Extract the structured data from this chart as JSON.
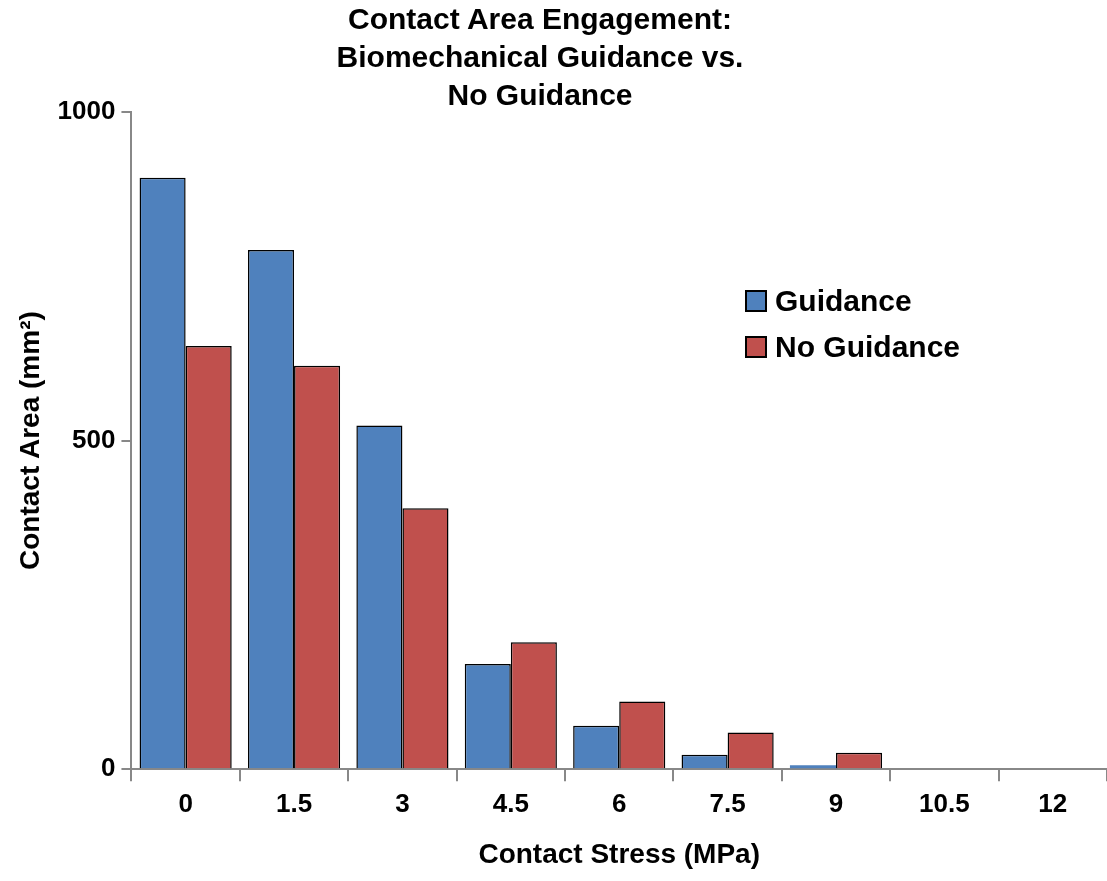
{
  "chart_data": {
    "type": "bar",
    "title": "Contact Area Engagement: Biomechanical Guidance vs. No Guidance",
    "xlabel": "Contact Stress (MPa)",
    "ylabel": "Contact Area (mm²)",
    "categories": [
      "0",
      "1.5",
      "3",
      "4.5",
      "6",
      "7.5",
      "9",
      "10.5",
      "12"
    ],
    "series": [
      {
        "name": "Guidance",
        "color": "#4f81bd",
        "values": [
          900,
          790,
          523,
          160,
          66,
          22,
          6,
          0,
          0
        ]
      },
      {
        "name": "No Guidance",
        "color": "#c0504d",
        "values": [
          644,
          614,
          397,
          193,
          103,
          56,
          25,
          null,
          0
        ]
      }
    ],
    "ylim": [
      0,
      1000
    ],
    "yticks": [
      0,
      500,
      1000
    ],
    "grid": false,
    "legend": "right"
  }
}
